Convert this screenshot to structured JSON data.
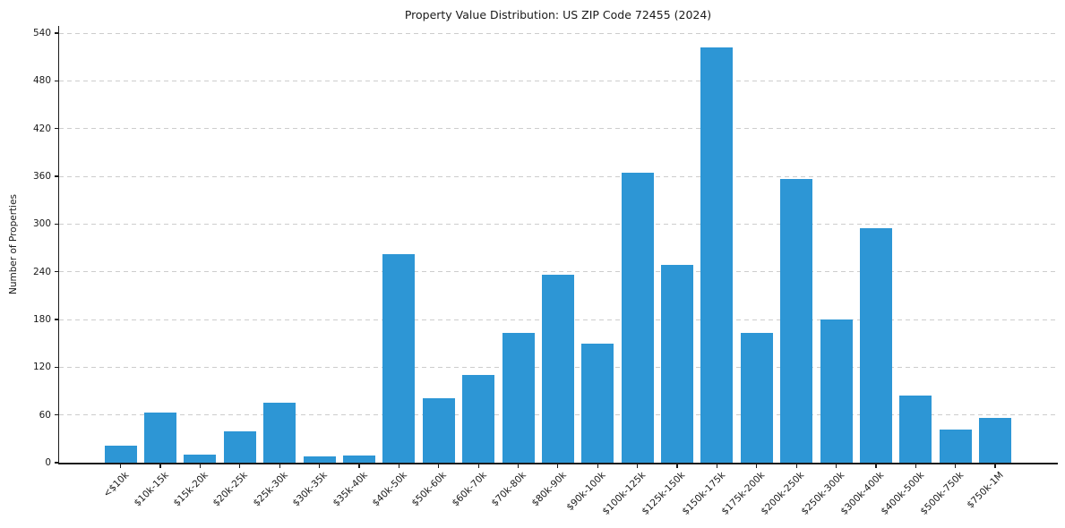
{
  "chart_data": {
    "type": "bar",
    "title": "Property Value Distribution: US ZIP Code 72455 (2024)",
    "xlabel": "",
    "ylabel": "Number of Properties",
    "categories": [
      "<$10k",
      "$10k-15k",
      "$15k-20k",
      "$20k-25k",
      "$25k-30k",
      "$30k-35k",
      "$35k-40k",
      "$40k-50k",
      "$50k-60k",
      "$60k-70k",
      "$70k-80k",
      "$80k-90k",
      "$90k-100k",
      "$100k-125k",
      "$125k-150k",
      "$150k-175k",
      "$175k-200k",
      "$200k-250k",
      "$250k-300k",
      "$300k-400k",
      "$400k-500k",
      "$500k-750k",
      "$750k-1M"
    ],
    "values": [
      21,
      63,
      10,
      39,
      75,
      8,
      9,
      262,
      81,
      110,
      163,
      236,
      150,
      364,
      249,
      522,
      163,
      357,
      180,
      295,
      84,
      42,
      56
    ],
    "yticks": [
      0,
      60,
      120,
      180,
      240,
      300,
      360,
      420,
      480,
      540
    ],
    "ylim": [
      0,
      549
    ],
    "grid": "horizontal-dashed",
    "legend": null,
    "bar_color": "#2d96d5",
    "gridline_color": "#cdcdcd",
    "axis_color": "#1a1a1a",
    "background_color": "#ffffff"
  }
}
